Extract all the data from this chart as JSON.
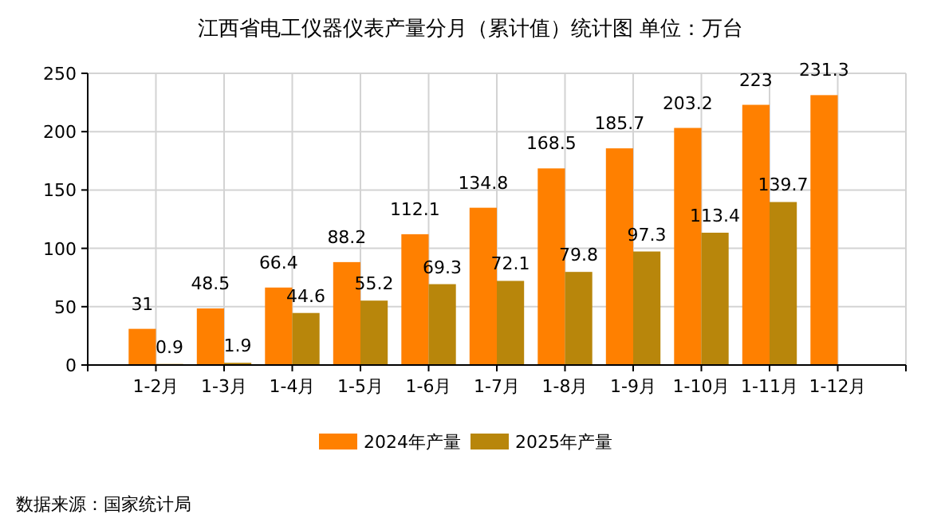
{
  "chart_data": {
    "type": "bar",
    "title": "江西省电工仪器仪表产量分月（累计值）统计图 单位：万台",
    "categories": [
      "1-2月",
      "1-3月",
      "1-4月",
      "1-5月",
      "1-6月",
      "1-7月",
      "1-8月",
      "1-9月",
      "1-10月",
      "1-11月",
      "1-12月"
    ],
    "series": [
      {
        "name": "2024年产量",
        "color": "#ff8000",
        "values": [
          31,
          48.5,
          66.4,
          88.2,
          112.1,
          134.8,
          168.5,
          185.7,
          203.2,
          223,
          231.3
        ]
      },
      {
        "name": "2025年产量",
        "color": "#b8860b",
        "values": [
          0.9,
          1.9,
          44.6,
          55.2,
          69.3,
          72.1,
          79.8,
          97.3,
          113.4,
          139.7,
          null
        ]
      }
    ],
    "ylim": [
      0,
      250
    ],
    "yticks": [
      0,
      50,
      100,
      150,
      200,
      250
    ],
    "grid": true,
    "legend": "bottom",
    "data_labels": true,
    "annotations": [
      "数据来源：国家统计局"
    ]
  }
}
